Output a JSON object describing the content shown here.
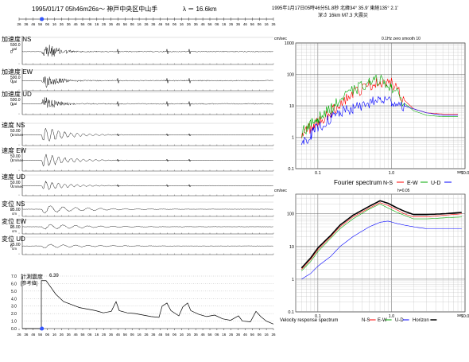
{
  "header": {
    "left": "1995/01/17  05h46m26s〜  神戸中央区中山手",
    "lambda": "λ ＝ 16.6km",
    "right_line1": "1995年1月17日05時46分51.8秒 北緯34° 35.9′ 東経135° 2.1′",
    "right_line2": "深さ 16km M7.3 大震災"
  },
  "timeline": {
    "labels": [
      "26",
      "36",
      "46",
      "56",
      "06",
      "16",
      "26",
      "36",
      "46",
      "56",
      "06",
      "16",
      "26",
      "36",
      "46",
      "56",
      "06",
      "16",
      "26",
      "36",
      "46",
      "56",
      "06",
      "16",
      "26",
      "36",
      "46",
      "56",
      "06",
      "16",
      "26",
      "36",
      "46",
      "56",
      "06",
      "16",
      "26"
    ],
    "highlight_index": 3,
    "highlight_color": "#3355ff"
  },
  "traces": [
    {
      "label": "加速度 NS",
      "scale": "500.0",
      "unit": "gal",
      "zero": "0",
      "amp": 1.0
    },
    {
      "label": "加速度 EW",
      "scale": "500.0",
      "unit": "gal",
      "zero": "0",
      "amp": 1.0
    },
    {
      "label": "加速度 UD",
      "scale": "500.0",
      "unit": "gal",
      "zero": "0",
      "amp": 0.85
    },
    {
      "label": "速度 NS",
      "scale": "50.00",
      "unit": "cm/sec",
      "zero": "0",
      "amp": 0.9
    },
    {
      "label": "速度 EW",
      "scale": "50.00",
      "unit": "cm/sec",
      "zero": "0",
      "amp": 0.8
    },
    {
      "label": "速度 UD",
      "scale": "50.00",
      "unit": "cm/sec",
      "zero": "0",
      "amp": 0.6
    },
    {
      "label": "変位 NS",
      "scale": "25.00",
      "unit": "cm",
      "zero": "0",
      "amp": 0.7
    },
    {
      "label": "変位 EW",
      "scale": "25.00",
      "unit": "cm",
      "zero": "0",
      "amp": 0.5
    },
    {
      "label": "変位 UD",
      "scale": "25.00",
      "unit": "cm",
      "zero": "0",
      "amp": 0.3
    }
  ],
  "intensity": {
    "label_line1": "計測震度",
    "label_line2": "[参考値]",
    "peak_label": "6.39",
    "yticks": [
      "7.0",
      "6.0",
      "5.0",
      "4.0",
      "3.0",
      "2.0",
      "1.0",
      "0.0"
    ]
  },
  "fourier": {
    "top_left": "cm/sec",
    "top_right": "0.1Hz zero smooth 10",
    "yticks": [
      "1000",
      "100",
      "10",
      "1",
      "0.1"
    ],
    "xticks": [
      "0.1",
      "1.0",
      "10.0"
    ],
    "xunit": "sec",
    "legend_title": "Fourier spectrum",
    "legend": [
      "N-S",
      "E-W",
      "U-D"
    ]
  },
  "response": {
    "top_left": "cm/sec",
    "top_right": "h=0.05",
    "yticks": [
      "100",
      "10",
      "1",
      "0.1"
    ],
    "xticks": [
      "0.1",
      "1.0",
      "10.0"
    ],
    "xunit": "sec",
    "legend_title": "Velocity response spectrum",
    "legend": [
      "N-S",
      "E-W",
      "U-D",
      "Horizon"
    ]
  },
  "chart_data": [
    {
      "type": "line",
      "title": "Fourier spectrum",
      "xlabel": "sec",
      "ylabel": "cm/sec",
      "log_x": true,
      "log_y": true,
      "xlim": [
        0.05,
        10.0
      ],
      "ylim": [
        0.1,
        1000
      ],
      "series": [
        {
          "name": "N-S",
          "color": "#ff0000",
          "x": [
            0.06,
            0.08,
            0.1,
            0.15,
            0.2,
            0.3,
            0.5,
            0.7,
            1.0,
            1.5,
            2.0,
            3.0,
            5.0,
            8.0
          ],
          "y": [
            1.2,
            2,
            3,
            6,
            12,
            25,
            45,
            60,
            55,
            15,
            8,
            6,
            5.5,
            5.5
          ]
        },
        {
          "name": "E-W",
          "color": "#00aa00",
          "x": [
            0.06,
            0.08,
            0.1,
            0.15,
            0.2,
            0.3,
            0.5,
            0.7,
            1.0,
            1.5,
            2.0,
            3.0,
            5.0,
            8.0
          ],
          "y": [
            1.5,
            2.5,
            4,
            8,
            15,
            30,
            55,
            70,
            40,
            12,
            7,
            5,
            4.5,
            4.5
          ]
        },
        {
          "name": "U-D",
          "color": "#0000ff",
          "x": [
            0.06,
            0.08,
            0.1,
            0.15,
            0.2,
            0.3,
            0.5,
            0.7,
            1.0,
            1.5,
            2.0,
            3.0,
            5.0,
            8.0
          ],
          "y": [
            0.6,
            1.2,
            2,
            4,
            6,
            8,
            12,
            16,
            14,
            10,
            8,
            6,
            5,
            5
          ]
        }
      ]
    },
    {
      "type": "line",
      "title": "Velocity response spectrum",
      "xlabel": "sec",
      "ylabel": "cm/sec",
      "log_x": true,
      "log_y": true,
      "xlim": [
        0.05,
        10.0
      ],
      "ylim": [
        0.1,
        400
      ],
      "series": [
        {
          "name": "N-S",
          "color": "#ff0000",
          "x": [
            0.06,
            0.08,
            0.1,
            0.15,
            0.2,
            0.3,
            0.5,
            0.7,
            0.9,
            1.2,
            1.5,
            2.0,
            3.0,
            5.0,
            9.0
          ],
          "y": [
            2,
            4,
            8,
            20,
            40,
            80,
            150,
            220,
            180,
            130,
            100,
            80,
            80,
            90,
            100
          ]
        },
        {
          "name": "E-W",
          "color": "#00aa00",
          "x": [
            0.06,
            0.08,
            0.1,
            0.15,
            0.2,
            0.3,
            0.5,
            0.7,
            0.9,
            1.2,
            1.5,
            2.0,
            3.0,
            5.0,
            9.0
          ],
          "y": [
            1.8,
            3.5,
            7,
            18,
            35,
            70,
            140,
            200,
            150,
            110,
            90,
            70,
            70,
            75,
            80
          ]
        },
        {
          "name": "U-D",
          "color": "#0000ff",
          "x": [
            0.06,
            0.08,
            0.1,
            0.15,
            0.2,
            0.3,
            0.5,
            0.7,
            0.9,
            1.2,
            1.5,
            2.0,
            3.0,
            5.0,
            9.0
          ],
          "y": [
            1,
            1.5,
            2.5,
            5,
            10,
            20,
            40,
            55,
            60,
            50,
            45,
            40,
            35,
            35,
            35
          ]
        },
        {
          "name": "Horizon",
          "color": "#000000",
          "x": [
            0.06,
            0.08,
            0.1,
            0.15,
            0.2,
            0.3,
            0.5,
            0.7,
            0.9,
            1.2,
            1.5,
            2.0,
            3.0,
            5.0,
            9.0
          ],
          "y": [
            2.2,
            4.5,
            9,
            22,
            45,
            90,
            170,
            250,
            210,
            150,
            120,
            95,
            95,
            100,
            110
          ]
        }
      ]
    },
    {
      "type": "line",
      "title": "計測震度 [参考値]",
      "ylim": [
        0,
        7
      ],
      "peak": 6.39
    }
  ]
}
